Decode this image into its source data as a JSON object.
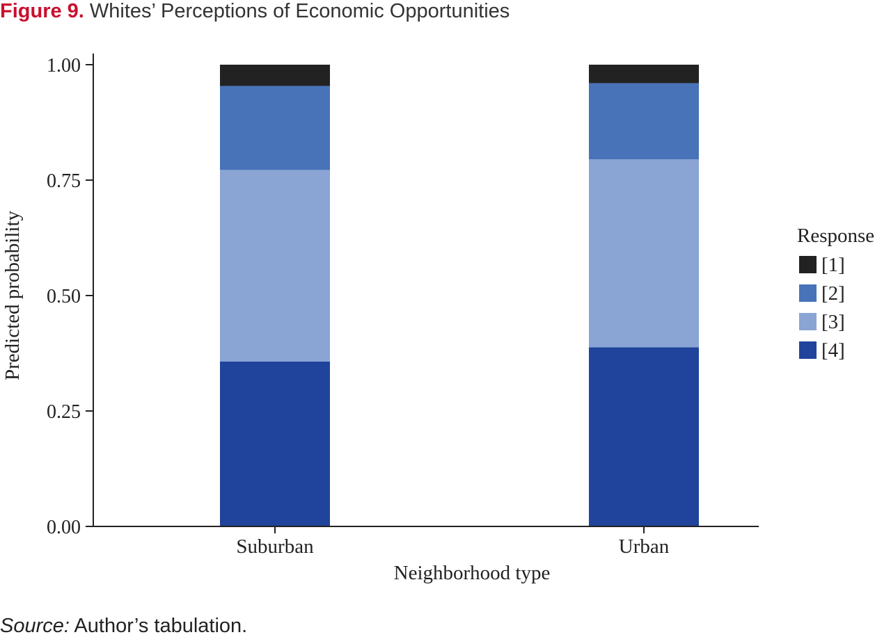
{
  "figure": {
    "label": "Figure 9.",
    "title": "Whites’ Perceptions of Economic Opportunities",
    "source_label": "Source:",
    "source_text": " Author’s tabulation."
  },
  "chart_data": {
    "type": "bar",
    "stacked": true,
    "categories": [
      "Suburban",
      "Urban"
    ],
    "xlabel": "Neighborhood type",
    "ylabel": "Predicted probability",
    "ylim": [
      0,
      1
    ],
    "yticks": [
      "0.00",
      "0.25",
      "0.50",
      "0.75",
      "1.00"
    ],
    "grid": false,
    "legend": {
      "title": "Response",
      "placement": "right"
    },
    "series": [
      {
        "name": "[4]",
        "color": "#20449b",
        "values": [
          0.357,
          0.388
        ]
      },
      {
        "name": "[3]",
        "color": "#8aa4d4",
        "values": [
          0.415,
          0.407
        ]
      },
      {
        "name": "[2]",
        "color": "#4873b8",
        "values": [
          0.182,
          0.165
        ]
      },
      {
        "name": "[1]",
        "color": "#222222",
        "values": [
          0.046,
          0.04
        ]
      }
    ],
    "legend_order": [
      "[1]",
      "[2]",
      "[3]",
      "[4]"
    ]
  }
}
